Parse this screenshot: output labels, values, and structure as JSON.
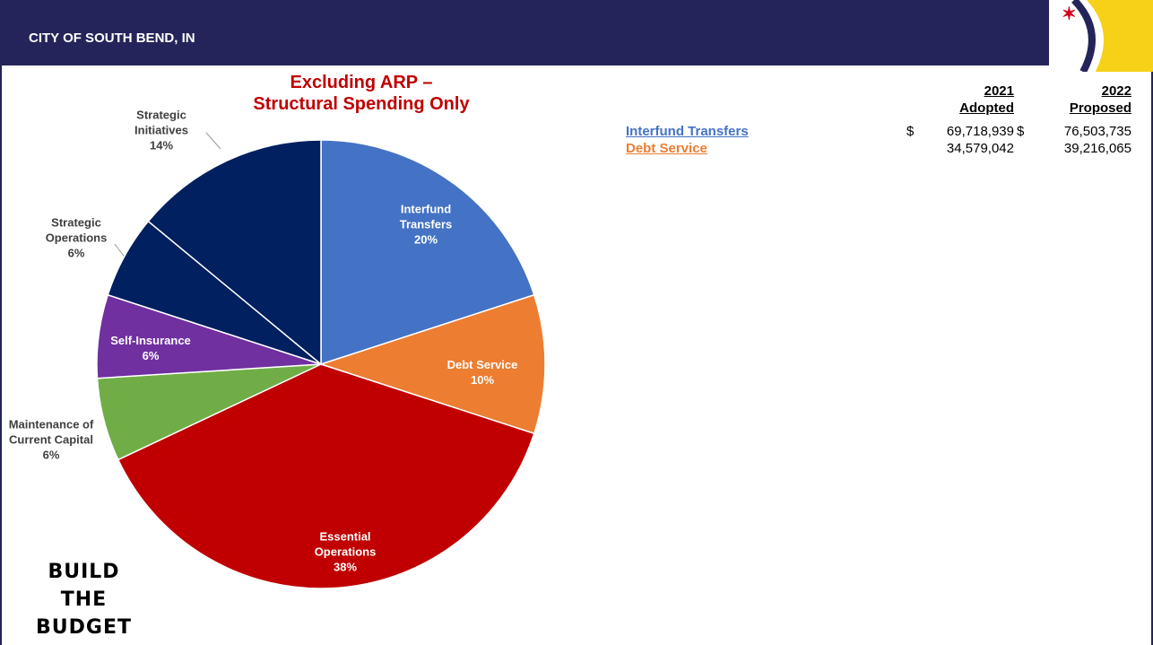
{
  "header": {
    "title": "CITY OF SOUTH BEND, IN"
  },
  "chart_data": {
    "type": "pie",
    "title": "Excluding ARP –",
    "subtitle": "Structural Spending Only",
    "categories": [
      "Interfund Transfers",
      "Debt Service",
      "Essential Operations",
      "Maintenance of Current Capital",
      "Self-Insurance",
      "Strategic Operations",
      "Strategic Initiatives"
    ],
    "values": [
      20,
      10,
      38,
      6,
      6,
      6,
      14
    ],
    "value_labels": [
      "20%",
      "10%",
      "38%",
      "6%",
      "6%",
      "6%",
      "14%"
    ],
    "colors": [
      "#4472c4",
      "#ed7d31",
      "#c00000",
      "#70ad47",
      "#7030a0",
      "#002060",
      "#002060"
    ]
  },
  "table": {
    "columns": [
      {
        "year": "2021",
        "label": "Adopted"
      },
      {
        "year": "2022",
        "label": "Proposed"
      }
    ],
    "rows": [
      {
        "label": "Interfund Transfers",
        "color": "#4472c4",
        "currency": "$",
        "values": [
          "69,718,939",
          "76,503,735"
        ]
      },
      {
        "label": "Debt Service",
        "color": "#ed7d31",
        "values": [
          "34,579,042",
          "39,216,065"
        ]
      }
    ]
  },
  "footer": {
    "lines": [
      "BUILD",
      "THE",
      "BUDGET"
    ]
  }
}
